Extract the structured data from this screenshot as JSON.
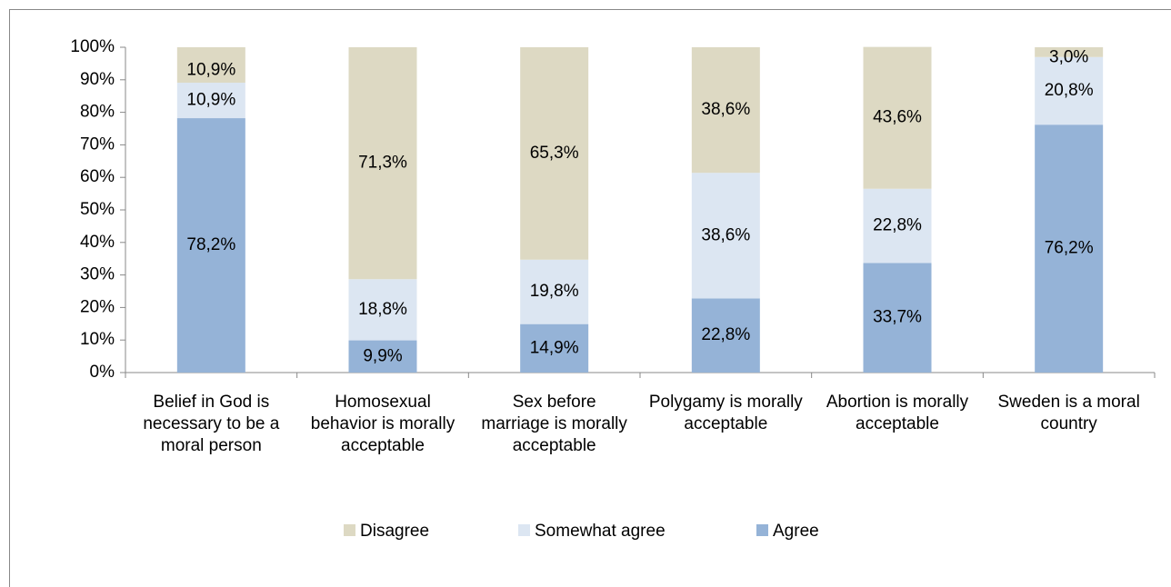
{
  "chart_data": {
    "type": "stacked_bar",
    "categories": [
      "Belief in God is necessary to be a moral person",
      "Homosexual behavior is morally acceptable",
      "Sex before marriage is morally acceptable",
      "Polygamy is morally acceptable",
      "Abortion is morally acceptable",
      "Sweden is a moral country"
    ],
    "series": [
      {
        "name": "Agree",
        "color": "#95b3d7",
        "values": [
          78.2,
          9.9,
          14.9,
          22.8,
          33.7,
          76.2
        ],
        "value_labels": [
          "78,2%",
          "9,9%",
          "14,9%",
          "22,8%",
          "33,7%",
          "76,2%"
        ]
      },
      {
        "name": "Somewhat agree",
        "color": "#dce6f2",
        "values": [
          10.9,
          18.8,
          19.8,
          38.6,
          22.8,
          20.8
        ],
        "value_labels": [
          "10,9%",
          "18,8%",
          "19,8%",
          "38,6%",
          "22,8%",
          "20,8%"
        ]
      },
      {
        "name": "Disagree",
        "color": "#ddd9c3",
        "values": [
          10.9,
          71.3,
          65.3,
          38.6,
          43.6,
          3.0
        ],
        "value_labels": [
          "10,9%",
          "71,3%",
          "65,3%",
          "38,6%",
          "43,6%",
          "3,0%"
        ]
      }
    ],
    "ylim": [
      0,
      100
    ],
    "yticks": [
      {
        "value": 0,
        "label": "0%"
      },
      {
        "value": 10,
        "label": "10%"
      },
      {
        "value": 20,
        "label": "20%"
      },
      {
        "value": 30,
        "label": "30%"
      },
      {
        "value": 40,
        "label": "40%"
      },
      {
        "value": 50,
        "label": "50%"
      },
      {
        "value": 60,
        "label": "60%"
      },
      {
        "value": 70,
        "label": "70%"
      },
      {
        "value": 80,
        "label": "80%"
      },
      {
        "value": 90,
        "label": "90%"
      },
      {
        "value": 100,
        "label": "100%"
      }
    ],
    "legend": "bottom"
  }
}
